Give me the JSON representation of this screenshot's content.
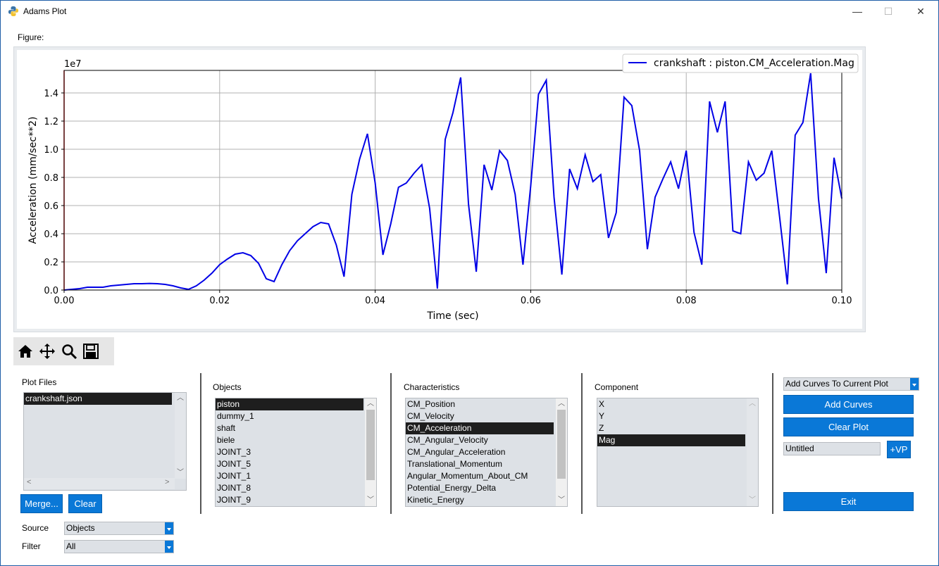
{
  "window": {
    "title": "Adams Plot",
    "minimize": "—",
    "maximize": "☐",
    "close": "✕"
  },
  "figure_label": "Figure:",
  "chart_data": {
    "type": "line",
    "xlabel": "Time (sec)",
    "ylabel": "Acceleration (mm/sec**2)",
    "y_scale_label": "1e7",
    "xlim": [
      0.0,
      0.1
    ],
    "ylim": [
      0.0,
      1.56
    ],
    "xticks": [
      "0.00",
      "0.02",
      "0.04",
      "0.06",
      "0.08",
      "0.10"
    ],
    "yticks": [
      "0.0",
      "0.2",
      "0.4",
      "0.6",
      "0.8",
      "1.0",
      "1.2",
      "1.4"
    ],
    "grid": true,
    "legend_position": "top-right",
    "line_color": "#0000e6",
    "series": [
      {
        "name": "crankshaft : piston.CM_Acceleration.Mag",
        "x": [
          0,
          0.001,
          0.002,
          0.003,
          0.004,
          0.005,
          0.006,
          0.007,
          0.008,
          0.009,
          0.01,
          0.011,
          0.012,
          0.013,
          0.014,
          0.015,
          0.016,
          0.017,
          0.018,
          0.019,
          0.02,
          0.021,
          0.022,
          0.023,
          0.024,
          0.025,
          0.026,
          0.027,
          0.028,
          0.029,
          0.03,
          0.031,
          0.032,
          0.033,
          0.034,
          0.035,
          0.036,
          0.037,
          0.038,
          0.039,
          0.04,
          0.041,
          0.042,
          0.043,
          0.044,
          0.045,
          0.046,
          0.047,
          0.048,
          0.049,
          0.05,
          0.051,
          0.052,
          0.053,
          0.054,
          0.055,
          0.056,
          0.057,
          0.058,
          0.059,
          0.06,
          0.061,
          0.062,
          0.063,
          0.064,
          0.065,
          0.066,
          0.067,
          0.068,
          0.069,
          0.07,
          0.071,
          0.072,
          0.073,
          0.074,
          0.075,
          0.076,
          0.077,
          0.078,
          0.079,
          0.08,
          0.081,
          0.082,
          0.083,
          0.084,
          0.085,
          0.086,
          0.087,
          0.088,
          0.089,
          0.09,
          0.091,
          0.092,
          0.093,
          0.094,
          0.095,
          0.096,
          0.097,
          0.098,
          0.099,
          0.1
        ],
        "y": [
          0.0,
          0.005,
          0.01,
          0.02,
          0.02,
          0.02,
          0.03,
          0.035,
          0.04,
          0.045,
          0.045,
          0.047,
          0.045,
          0.04,
          0.03,
          0.015,
          0.005,
          0.03,
          0.07,
          0.12,
          0.18,
          0.22,
          0.255,
          0.265,
          0.245,
          0.19,
          0.08,
          0.06,
          0.18,
          0.28,
          0.35,
          0.4,
          0.45,
          0.48,
          0.47,
          0.32,
          0.095,
          0.68,
          0.93,
          1.11,
          0.76,
          0.25,
          0.47,
          0.73,
          0.76,
          0.83,
          0.89,
          0.58,
          0.01,
          1.07,
          1.26,
          1.51,
          0.61,
          0.13,
          0.89,
          0.71,
          0.99,
          0.92,
          0.68,
          0.18,
          0.74,
          1.39,
          1.49,
          0.66,
          0.11,
          0.86,
          0.72,
          0.96,
          0.77,
          0.82,
          0.37,
          0.55,
          1.37,
          1.31,
          0.99,
          0.29,
          0.66,
          0.79,
          0.91,
          0.72,
          0.99,
          0.41,
          0.18,
          1.34,
          1.12,
          1.34,
          0.42,
          0.4,
          0.91,
          0.78,
          0.83,
          0.99,
          0.52,
          0.04,
          1.1,
          1.19,
          1.54,
          0.65,
          0.12,
          0.94,
          0.65
        ]
      }
    ]
  },
  "toolbar": {
    "icons": [
      "home-icon",
      "pan-icon",
      "zoom-icon",
      "save-icon"
    ]
  },
  "plot_files": {
    "label": "Plot Files",
    "items": [
      "crankshaft.json"
    ],
    "selected": 0,
    "merge_label": "Merge...",
    "clear_label": "Clear"
  },
  "source": {
    "label": "Source",
    "value": "Objects"
  },
  "filter": {
    "label": "Filter",
    "value": "All"
  },
  "objects": {
    "label": "Objects",
    "items": [
      "piston",
      "dummy_1",
      "shaft",
      "biele",
      "JOINT_3",
      "JOINT_5",
      "JOINT_1",
      "JOINT_8",
      "JOINT_9"
    ],
    "selected": 0
  },
  "characteristics": {
    "label": "Characteristics",
    "items": [
      "CM_Position",
      "CM_Velocity",
      "CM_Acceleration",
      "CM_Angular_Velocity",
      "CM_Angular_Acceleration",
      "Translational_Momentum",
      "Angular_Momentum_About_CM",
      "Potential_Energy_Delta",
      "Kinetic_Energy"
    ],
    "selected": 2
  },
  "component": {
    "label": "Component",
    "items": [
      "X",
      "Y",
      "Z",
      "Mag"
    ],
    "selected": 3
  },
  "actions": {
    "mode_value": "Add Curves To Current Plot",
    "add_curves": "Add Curves",
    "clear_plot": "Clear Plot",
    "page_name": "Untitled",
    "add_vp": "+VP",
    "exit": "Exit"
  },
  "colors": {
    "accent": "#0a78d7",
    "list_bg": "#dde1e6",
    "selection": "#1e1e1e",
    "curve": "#0000e6"
  }
}
